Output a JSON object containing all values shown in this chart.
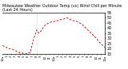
{
  "title": "Milwaukee Weather Outdoor Temp (vs) Wind Chill per Minute (Last 24 Hours)",
  "background_color": "#ffffff",
  "line_color": "#dd0000",
  "vline_x": 480,
  "ylim": [
    15,
    55
  ],
  "xlim": [
    0,
    1440
  ],
  "yticks": [
    15,
    20,
    25,
    30,
    35,
    40,
    45,
    50,
    55
  ],
  "ylabel_fontsize": 3.5,
  "xlabel_fontsize": 2.8,
  "title_fontsize": 3.5,
  "x_data": [
    0,
    30,
    60,
    90,
    120,
    150,
    180,
    210,
    240,
    270,
    300,
    330,
    360,
    390,
    420,
    450,
    480,
    510,
    540,
    570,
    600,
    630,
    660,
    690,
    720,
    750,
    780,
    810,
    840,
    870,
    900,
    930,
    960,
    990,
    1020,
    1050,
    1080,
    1110,
    1140,
    1170,
    1200,
    1230,
    1260,
    1290,
    1320,
    1350,
    1380,
    1410,
    1440
  ],
  "y_data": [
    23,
    22,
    21,
    20,
    20,
    19,
    18,
    17,
    16,
    16,
    15,
    15,
    16,
    16,
    25,
    32,
    38,
    35,
    37,
    40,
    43,
    44,
    45,
    46,
    46,
    47,
    47,
    48,
    48,
    49,
    50,
    49,
    48,
    47,
    47,
    46,
    45,
    44,
    42,
    40,
    38,
    36,
    34,
    32,
    30,
    27,
    25,
    23,
    21
  ],
  "xtick_positions": [
    0,
    60,
    120,
    180,
    240,
    300,
    360,
    420,
    480,
    540,
    600,
    660,
    720,
    780,
    840,
    900,
    960,
    1020,
    1080,
    1140,
    1200,
    1260,
    1320,
    1380,
    1440
  ],
  "xtick_labels": [
    "12a",
    "1",
    "2",
    "3",
    "4",
    "5",
    "6",
    "7",
    "8",
    "9",
    "10",
    "11",
    "12p",
    "1",
    "2",
    "3",
    "4",
    "5",
    "6",
    "7",
    "8",
    "9",
    "10",
    "11",
    "12a"
  ]
}
